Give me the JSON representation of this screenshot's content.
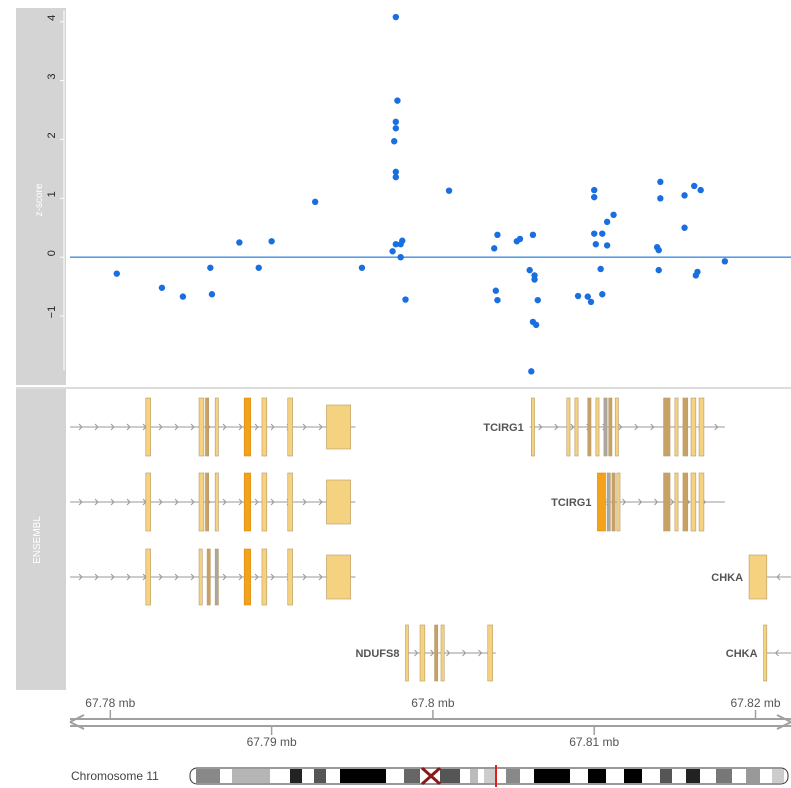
{
  "chart_data": {
    "type": "scatter",
    "panels": {
      "zscore_title": "z-score",
      "ensembl_title": "ENSEMBL"
    },
    "ylim": [
      -1.9,
      4.2
    ],
    "yticks": [
      4,
      3,
      2,
      1,
      0,
      -1
    ],
    "baseline": 0,
    "xlim": [
      67.7775,
      67.8222
    ],
    "point_color": "#1a6fe0",
    "baseline_color": "#3a8ee6",
    "points": [
      {
        "x": 67.7804,
        "y": -0.28
      },
      {
        "x": 67.7832,
        "y": -0.52
      },
      {
        "x": 67.7845,
        "y": -0.67
      },
      {
        "x": 67.7862,
        "y": -0.18
      },
      {
        "x": 67.7863,
        "y": -0.63
      },
      {
        "x": 67.788,
        "y": 0.25
      },
      {
        "x": 67.7892,
        "y": -0.18
      },
      {
        "x": 67.79,
        "y": 0.27
      },
      {
        "x": 67.7927,
        "y": 0.94
      },
      {
        "x": 67.7956,
        "y": -0.18
      },
      {
        "x": 67.7977,
        "y": 4.08
      },
      {
        "x": 67.7978,
        "y": 2.66
      },
      {
        "x": 67.7977,
        "y": 2.3
      },
      {
        "x": 67.7977,
        "y": 2.19
      },
      {
        "x": 67.7976,
        "y": 1.97
      },
      {
        "x": 67.7977,
        "y": 1.45
      },
      {
        "x": 67.7977,
        "y": 1.36
      },
      {
        "x": 67.7975,
        "y": 0.1
      },
      {
        "x": 67.7977,
        "y": 0.22
      },
      {
        "x": 67.798,
        "y": 0.22
      },
      {
        "x": 67.7981,
        "y": 0.28
      },
      {
        "x": 67.798,
        "y": 0.0
      },
      {
        "x": 67.7983,
        "y": -0.72
      },
      {
        "x": 67.801,
        "y": 1.13
      },
      {
        "x": 67.8038,
        "y": 0.15
      },
      {
        "x": 67.804,
        "y": 0.38
      },
      {
        "x": 67.8039,
        "y": -0.57
      },
      {
        "x": 67.804,
        "y": -0.73
      },
      {
        "x": 67.8052,
        "y": 0.27
      },
      {
        "x": 67.8054,
        "y": 0.31
      },
      {
        "x": 67.806,
        "y": -0.22
      },
      {
        "x": 67.8062,
        "y": 0.38
      },
      {
        "x": 67.8063,
        "y": -0.31
      },
      {
        "x": 67.8063,
        "y": -0.38
      },
      {
        "x": 67.8065,
        "y": -0.73
      },
      {
        "x": 67.8062,
        "y": -1.1
      },
      {
        "x": 67.8064,
        "y": -1.15
      },
      {
        "x": 67.8061,
        "y": -1.94
      },
      {
        "x": 67.809,
        "y": -0.66
      },
      {
        "x": 67.8096,
        "y": -0.67
      },
      {
        "x": 67.8098,
        "y": -0.76
      },
      {
        "x": 67.81,
        "y": 0.4
      },
      {
        "x": 67.81,
        "y": 1.14
      },
      {
        "x": 67.81,
        "y": 1.02
      },
      {
        "x": 67.8101,
        "y": 0.22
      },
      {
        "x": 67.8104,
        "y": -0.2
      },
      {
        "x": 67.8105,
        "y": -0.63
      },
      {
        "x": 67.8105,
        "y": 0.4
      },
      {
        "x": 67.8108,
        "y": 0.6
      },
      {
        "x": 67.8108,
        "y": 0.2
      },
      {
        "x": 67.8112,
        "y": 0.72
      },
      {
        "x": 67.8139,
        "y": 0.17
      },
      {
        "x": 67.814,
        "y": -0.22
      },
      {
        "x": 67.814,
        "y": 0.12
      },
      {
        "x": 67.8141,
        "y": 1.28
      },
      {
        "x": 67.8141,
        "y": 1.0
      },
      {
        "x": 67.8156,
        "y": 1.05
      },
      {
        "x": 67.8156,
        "y": 0.5
      },
      {
        "x": 67.8162,
        "y": 1.21
      },
      {
        "x": 67.8164,
        "y": -0.25
      },
      {
        "x": 67.8163,
        "y": -0.31
      },
      {
        "x": 67.8166,
        "y": 1.14
      },
      {
        "x": 67.8181,
        "y": -0.07
      }
    ],
    "axis": {
      "top_ticks": [
        67.78,
        67.8,
        67.82
      ],
      "bottom_ticks": [
        67.79,
        67.81
      ],
      "tick_labels": {
        "67.78": "67.78 mb",
        "67.79": "67.79 mb",
        "67.8": "67.8 mb",
        "67.81": "67.81 mb",
        "67.82": "67.82 mb"
      }
    },
    "chromosome_label": "Chromosome 11",
    "gene_colors": {
      "exon": "#f5d27f",
      "exon_dark": "#c8a165",
      "utr": "#f4a21c",
      "gray": "#a8a8a8",
      "line": "#999999"
    },
    "transcripts": [
      {
        "label": "",
        "strand": "+",
        "row": 0,
        "start": 67.7775,
        "end": 67.7952,
        "exons": [
          [
            67.7822,
            67.7825,
            "exon"
          ],
          [
            67.7855,
            67.7858,
            "exon"
          ],
          [
            67.7859,
            67.7861,
            "exon_dark"
          ],
          [
            67.7865,
            67.7867,
            "exon"
          ],
          [
            67.7883,
            67.7887,
            "utr"
          ],
          [
            67.7894,
            67.7897,
            "exon"
          ],
          [
            67.791,
            67.7913,
            "exon"
          ],
          [
            67.7934,
            67.7949,
            "exon"
          ]
        ]
      },
      {
        "label": "TCIRG1",
        "strand": "+",
        "row": 0,
        "start": 67.806,
        "end": 67.8181,
        "exons": [
          [
            67.8061,
            67.8063,
            "exon"
          ],
          [
            67.8083,
            67.8085,
            "exon"
          ],
          [
            67.8088,
            67.809,
            "exon"
          ],
          [
            67.8096,
            67.8098,
            "exon_dark"
          ],
          [
            67.8101,
            67.8103,
            "exon"
          ],
          [
            67.8106,
            67.8108,
            "gray"
          ],
          [
            67.8109,
            67.8111,
            "exon_dark"
          ],
          [
            67.8113,
            67.8115,
            "exon"
          ],
          [
            67.8143,
            67.8147,
            "exon_dark"
          ],
          [
            67.815,
            67.8152,
            "exon"
          ],
          [
            67.8155,
            67.8158,
            "exon_dark"
          ],
          [
            67.816,
            67.8163,
            "exon"
          ],
          [
            67.8165,
            67.8168,
            "exon"
          ]
        ]
      },
      {
        "label": "",
        "strand": "+",
        "row": 1,
        "start": 67.7775,
        "end": 67.7952,
        "exons": [
          [
            67.7822,
            67.7825,
            "exon"
          ],
          [
            67.7855,
            67.7858,
            "exon"
          ],
          [
            67.7859,
            67.7861,
            "exon_dark"
          ],
          [
            67.7865,
            67.7867,
            "exon"
          ],
          [
            67.7883,
            67.7887,
            "utr"
          ],
          [
            67.7894,
            67.7897,
            "exon"
          ],
          [
            67.791,
            67.7913,
            "exon"
          ],
          [
            67.7934,
            67.7949,
            "exon"
          ]
        ]
      },
      {
        "label": "TCIRG1",
        "strand": "+",
        "row": 1,
        "start": 67.8102,
        "end": 67.8181,
        "exons": [
          [
            67.8102,
            67.8107,
            "utr"
          ],
          [
            67.8108,
            67.811,
            "gray"
          ],
          [
            67.8111,
            67.8113,
            "exon_dark"
          ],
          [
            67.8114,
            67.8116,
            "exon"
          ],
          [
            67.8143,
            67.8147,
            "exon_dark"
          ],
          [
            67.815,
            67.8152,
            "exon"
          ],
          [
            67.8155,
            67.8158,
            "exon_dark"
          ],
          [
            67.816,
            67.8163,
            "exon"
          ],
          [
            67.8165,
            67.8168,
            "exon"
          ]
        ]
      },
      {
        "label": "",
        "strand": "+",
        "row": 2,
        "start": 67.7775,
        "end": 67.7952,
        "exons": [
          [
            67.7822,
            67.7825,
            "exon"
          ],
          [
            67.7855,
            67.7857,
            "exon"
          ],
          [
            67.786,
            67.7862,
            "exon_dark"
          ],
          [
            67.7865,
            67.7867,
            "gray"
          ],
          [
            67.7883,
            67.7887,
            "utr"
          ],
          [
            67.7894,
            67.7897,
            "exon"
          ],
          [
            67.791,
            67.7913,
            "exon"
          ],
          [
            67.7934,
            67.7949,
            "exon"
          ]
        ]
      },
      {
        "label": "CHKA",
        "strand": "-",
        "row": 2,
        "start": 67.8196,
        "end": 67.8222,
        "exons": [
          [
            67.8196,
            67.8207,
            "exon"
          ]
        ]
      },
      {
        "label": "NDUFS8",
        "strand": "+",
        "row": 3,
        "start": 67.7983,
        "end": 67.8039,
        "exons": [
          [
            67.7983,
            67.7984,
            "exon"
          ],
          [
            67.7992,
            67.7995,
            "exon"
          ],
          [
            67.8001,
            67.8003,
            "exon_dark"
          ],
          [
            67.8005,
            67.8007,
            "exon"
          ],
          [
            67.8034,
            67.8037,
            "exon"
          ]
        ]
      },
      {
        "label": "CHKA",
        "strand": "-",
        "row": 3,
        "start": 67.8205,
        "end": 67.8222,
        "exons": [
          [
            67.8205,
            67.8207,
            "exon"
          ]
        ]
      }
    ]
  }
}
